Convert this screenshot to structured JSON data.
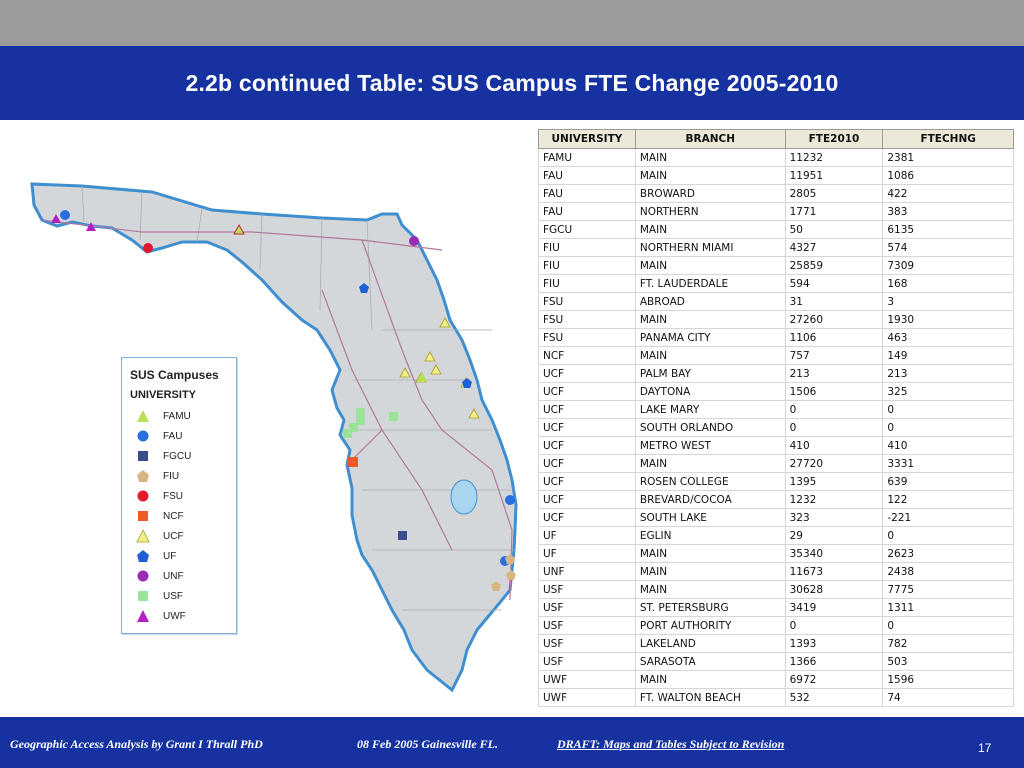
{
  "slide": {
    "title": "2.2b continued  Table: SUS Campus FTE Change 2005-2010",
    "page_number": "17"
  },
  "footer": {
    "author": "Geographic Access Analysis by Grant I Thrall PhD",
    "date_place": "08 Feb 2005  Gainesville FL.",
    "draft_note": "DRAFT:  Maps and Tables Subject to Revision"
  },
  "legend": {
    "title": "SUS Campuses",
    "subtitle": "UNIVERSITY",
    "items": [
      {
        "label": "FAMU",
        "shape": "triangle",
        "color": "#b6e05a"
      },
      {
        "label": "FAU",
        "shape": "circle",
        "color": "#2a6fe0"
      },
      {
        "label": "FGCU",
        "shape": "square",
        "color": "#3b4c8c"
      },
      {
        "label": "FIU",
        "shape": "pentagon",
        "color": "#d9b483"
      },
      {
        "label": "FSU",
        "shape": "circle",
        "color": "#e3182a"
      },
      {
        "label": "NCF",
        "shape": "square",
        "color": "#ef5a2a"
      },
      {
        "label": "UCF",
        "shape": "triangle",
        "color": "#f4ee8a"
      },
      {
        "label": "UF",
        "shape": "pentagon",
        "color": "#1f5fd6"
      },
      {
        "label": "UNF",
        "shape": "circle",
        "color": "#9b2ab5"
      },
      {
        "label": "USF",
        "shape": "square",
        "color": "#9be39a"
      },
      {
        "label": "UWF",
        "shape": "triangle",
        "color": "#b21fc4"
      }
    ]
  },
  "table": {
    "headers": [
      "UNIVERSITY",
      "BRANCH",
      "FTE2010",
      "FTECHNG"
    ],
    "rows": [
      [
        "FAMU",
        "MAIN",
        "11232",
        "2381"
      ],
      [
        "FAU",
        "MAIN",
        "11951",
        "1086"
      ],
      [
        "FAU",
        "BROWARD",
        "2805",
        "422"
      ],
      [
        "FAU",
        "NORTHERN",
        "1771",
        "383"
      ],
      [
        "FGCU",
        "MAIN",
        "50",
        "6135"
      ],
      [
        "FIU",
        "NORTHERN MIAMI",
        "4327",
        "574"
      ],
      [
        "FIU",
        "MAIN",
        "25859",
        "7309"
      ],
      [
        "FIU",
        "FT. LAUDERDALE",
        "594",
        "168"
      ],
      [
        "FSU",
        "ABROAD",
        "31",
        "3"
      ],
      [
        "FSU",
        "MAIN",
        "27260",
        "1930"
      ],
      [
        "FSU",
        "PANAMA CITY",
        "1106",
        "463"
      ],
      [
        "NCF",
        "MAIN",
        "757",
        "149"
      ],
      [
        "UCF",
        "PALM BAY",
        "213",
        "213"
      ],
      [
        "UCF",
        "DAYTONA",
        "1506",
        "325"
      ],
      [
        "UCF",
        "LAKE MARY",
        "0",
        "0"
      ],
      [
        "UCF",
        "SOUTH ORLANDO",
        "0",
        "0"
      ],
      [
        "UCF",
        "METRO WEST",
        "410",
        "410"
      ],
      [
        "UCF",
        "MAIN",
        "27720",
        "3331"
      ],
      [
        "UCF",
        "ROSEN COLLEGE",
        "1395",
        "639"
      ],
      [
        "UCF",
        "BREVARD/COCOA",
        "1232",
        "122"
      ],
      [
        "UCF",
        "SOUTH LAKE",
        "323",
        "-221"
      ],
      [
        "UF",
        "EGLIN",
        "29",
        "0"
      ],
      [
        "UF",
        "MAIN",
        "35340",
        "2623"
      ],
      [
        "UNF",
        "MAIN",
        "11673",
        "2438"
      ],
      [
        "USF",
        "MAIN",
        "30628",
        "7775"
      ],
      [
        "USF",
        "ST. PETERSBURG",
        "3419",
        "1311"
      ],
      [
        "USF",
        "PORT AUTHORITY",
        "0",
        "0"
      ],
      [
        "USF",
        "LAKELAND",
        "1393",
        "782"
      ],
      [
        "USF",
        "SARASOTA",
        "1366",
        "503"
      ],
      [
        "UWF",
        "MAIN",
        "6972",
        "1596"
      ],
      [
        "UWF",
        "FT. WALTON BEACH",
        "532",
        "74"
      ]
    ]
  },
  "colors": {
    "header_bg": "#1532a0",
    "top_band": "#9b9b9b",
    "land": "#d4d7da",
    "coast": "#3f8fd0",
    "lake": "#a9d6ee"
  }
}
